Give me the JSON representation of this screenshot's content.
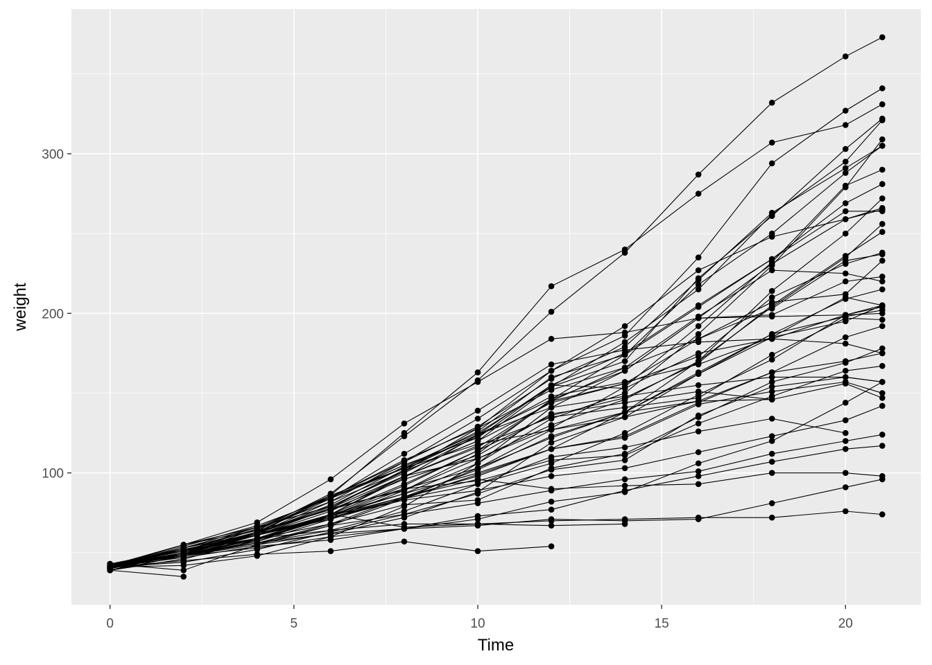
{
  "chart_data": {
    "type": "line",
    "xlabel": "Time",
    "ylabel": "weight",
    "xlim": [
      -1.05,
      22.05
    ],
    "ylim": [
      17.4,
      390.7
    ],
    "x_ticks": [
      0,
      5,
      10,
      15,
      20
    ],
    "x_tick_labels": [
      "0",
      "5",
      "10",
      "15",
      "20"
    ],
    "y_ticks": [
      100,
      200,
      300
    ],
    "y_tick_labels": [
      "100",
      "200",
      "300"
    ],
    "grid": true,
    "legend": "none",
    "colors": {
      "panel": "#ebebeb",
      "grid": "#ffffff",
      "series": "#000000"
    },
    "x": [
      0,
      2,
      4,
      6,
      8,
      10,
      12,
      14,
      16,
      18,
      20,
      21
    ],
    "series": [
      {
        "values": [
          42,
          51,
          59,
          64,
          76,
          93,
          106,
          125,
          149,
          171,
          199,
          205
        ]
      },
      {
        "values": [
          40,
          49,
          58,
          72,
          84,
          103,
          122,
          138,
          162,
          187,
          209,
          215
        ]
      },
      {
        "values": [
          43,
          39,
          55,
          67,
          84,
          99,
          115,
          138,
          163,
          187,
          198,
          202
        ]
      },
      {
        "values": [
          42,
          49,
          56,
          67,
          74,
          87,
          102,
          108,
          136,
          154,
          160,
          157
        ]
      },
      {
        "values": [
          41,
          42,
          48,
          60,
          79,
          106,
          141,
          164,
          197,
          199,
          220,
          223
        ]
      },
      {
        "values": [
          41,
          49,
          59,
          74,
          97,
          124,
          141,
          148,
          155,
          160,
          160,
          157
        ]
      },
      {
        "values": [
          41,
          49,
          57,
          71,
          89,
          112,
          146,
          174,
          218,
          250,
          288,
          305
        ]
      },
      {
        "values": [
          42,
          50,
          61,
          71,
          84,
          93,
          110,
          116,
          126,
          134,
          125,
          null
        ]
      },
      {
        "values": [
          42,
          51,
          59,
          68,
          85,
          96,
          90,
          92,
          93,
          100,
          100,
          98
        ]
      },
      {
        "values": [
          41,
          44,
          52,
          63,
          74,
          81,
          89,
          96,
          101,
          112,
          120,
          124
        ]
      },
      {
        "values": [
          43,
          51,
          63,
          84,
          112,
          139,
          168,
          177,
          182,
          184,
          181,
          175
        ]
      },
      {
        "values": [
          41,
          49,
          56,
          62,
          72,
          88,
          119,
          135,
          162,
          185,
          195,
          205
        ]
      },
      {
        "values": [
          41,
          48,
          53,
          60,
          65,
          67,
          71,
          70,
          71,
          81,
          91,
          96
        ]
      },
      {
        "values": [
          41,
          49,
          62,
          79,
          101,
          128,
          164,
          192,
          227,
          248,
          259,
          266
        ]
      },
      {
        "values": [
          41,
          49,
          56,
          64,
          68,
          68,
          67,
          68,
          null,
          null,
          null,
          null
        ]
      },
      {
        "values": [
          41,
          45,
          49,
          51,
          57,
          51,
          54,
          null,
          null,
          null,
          null,
          null
        ]
      },
      {
        "values": [
          42,
          51,
          61,
          72,
          83,
          89,
          98,
          103,
          113,
          123,
          133,
          142
        ]
      },
      {
        "values": [
          39,
          35,
          null,
          null,
          null,
          null,
          null,
          null,
          null,
          null,
          null,
          null
        ]
      },
      {
        "values": [
          43,
          48,
          55,
          62,
          65,
          71,
          82,
          88,
          106,
          120,
          144,
          157
        ]
      },
      {
        "values": [
          41,
          47,
          54,
          58,
          65,
          73,
          77,
          89,
          98,
          107,
          115,
          117
        ]
      },
      {
        "values": [
          40,
          50,
          62,
          86,
          125,
          163,
          217,
          240,
          275,
          307,
          318,
          331
        ]
      },
      {
        "values": [
          41,
          55,
          64,
          77,
          90,
          95,
          108,
          111,
          131,
          148,
          164,
          167
        ]
      },
      {
        "values": [
          43,
          52,
          61,
          73,
          90,
          103,
          127,
          135,
          145,
          163,
          170,
          175
        ]
      },
      {
        "values": [
          42,
          52,
          58,
          74,
          66,
          68,
          70,
          71,
          72,
          72,
          76,
          74
        ]
      },
      {
        "values": [
          40,
          49,
          62,
          78,
          102,
          124,
          146,
          164,
          197,
          231,
          259,
          265
        ]
      },
      {
        "values": [
          42,
          48,
          57,
          74,
          93,
          114,
          136,
          147,
          169,
          205,
          236,
          251
        ]
      },
      {
        "values": [
          39,
          46,
          58,
          73,
          87,
          100,
          115,
          123,
          144,
          163,
          185,
          192
        ]
      },
      {
        "values": [
          39,
          46,
          58,
          73,
          92,
          114,
          145,
          156,
          184,
          207,
          212,
          233
        ]
      },
      {
        "values": [
          39,
          48,
          59,
          74,
          87,
          106,
          134,
          150,
          187,
          230,
          279,
          309
        ]
      },
      {
        "values": [
          42,
          48,
          59,
          72,
          85,
          98,
          115,
          122,
          143,
          151,
          157,
          150
        ]
      },
      {
        "values": [
          42,
          53,
          62,
          73,
          85,
          102,
          123,
          138,
          170,
          204,
          235,
          256
        ]
      },
      {
        "values": [
          41,
          49,
          65,
          82,
          107,
          129,
          159,
          179,
          221,
          263,
          291,
          305
        ]
      },
      {
        "values": [
          39,
          50,
          63,
          77,
          96,
          111,
          137,
          144,
          151,
          146,
          156,
          147
        ]
      },
      {
        "values": [
          41,
          49,
          63,
          85,
          107,
          134,
          164,
          186,
          235,
          294,
          327,
          341
        ]
      },
      {
        "values": [
          41,
          53,
          64,
          87,
          123,
          158,
          201,
          238,
          287,
          332,
          361,
          373
        ]
      },
      {
        "values": [
          39,
          48,
          61,
          76,
          98,
          116,
          145,
          166,
          198,
          227,
          225,
          220
        ]
      },
      {
        "values": [
          41,
          48,
          56,
          68,
          80,
          83,
          103,
          112,
          135,
          157,
          169,
          178
        ]
      },
      {
        "values": [
          41,
          49,
          61,
          74,
          98,
          109,
          128,
          154,
          192,
          232,
          280,
          290
        ]
      },
      {
        "values": [
          42,
          50,
          61,
          78,
          89,
          109,
          130,
          146,
          170,
          214,
          250,
          272
        ]
      },
      {
        "values": [
          41,
          55,
          66,
          79,
          101,
          120,
          154,
          182,
          215,
          262,
          295,
          321
        ]
      },
      {
        "values": [
          42,
          51,
          66,
          85,
          103,
          124,
          155,
          153,
          175,
          184,
          199,
          204
        ]
      },
      {
        "values": [
          42,
          49,
          63,
          84,
          103,
          126,
          160,
          174,
          204,
          234,
          269,
          281
        ]
      },
      {
        "values": [
          42,
          55,
          69,
          96,
          131,
          157,
          184,
          188,
          197,
          198,
          199,
          200
        ]
      },
      {
        "values": [
          42,
          51,
          65,
          86,
          103,
          118,
          127,
          138,
          145,
          146,
          null,
          null
        ]
      },
      {
        "values": [
          41,
          50,
          61,
          78,
          98,
          117,
          135,
          141,
          147,
          174,
          197,
          196
        ]
      },
      {
        "values": [
          40,
          52,
          62,
          82,
          101,
          120,
          144,
          156,
          173,
          210,
          231,
          238
        ]
      },
      {
        "values": [
          41,
          53,
          66,
          79,
          100,
          123,
          148,
          157,
          168,
          185,
          210,
          205
        ]
      },
      {
        "values": [
          39,
          50,
          62,
          80,
          104,
          125,
          154,
          170,
          222,
          261,
          303,
          322
        ]
      },
      {
        "values": [
          40,
          53,
          64,
          85,
          108,
          128,
          152,
          166,
          184,
          203,
          233,
          237
        ]
      },
      {
        "values": [
          41,
          54,
          67,
          84,
          105,
          122,
          155,
          175,
          205,
          234,
          264,
          264
        ]
      }
    ]
  }
}
